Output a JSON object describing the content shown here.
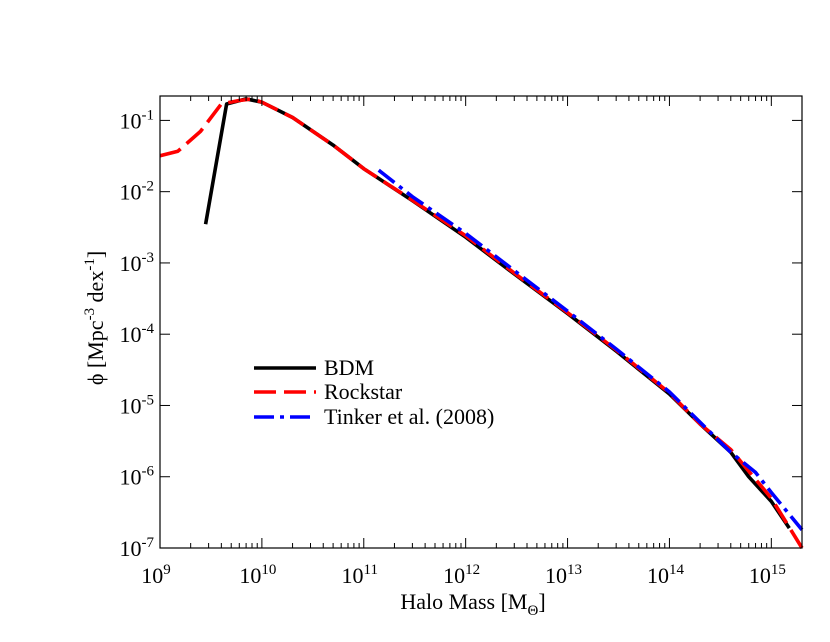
{
  "chart_data": {
    "type": "line",
    "title": "",
    "xscale": "log",
    "yscale": "log",
    "xlim": [
      1000000000.0,
      2000000000000000.0
    ],
    "ylim": [
      1e-07,
      0.22
    ],
    "grid": false,
    "legend_position": "center-left",
    "xlabel": {
      "main": "Halo Mass [M",
      "sub": "Θ",
      "tail": "]"
    },
    "ylabel": {
      "main": "ϕ [Mpc",
      "sup1": "-3",
      "mid": " dex",
      "sup2": "-1",
      "tail": "]"
    },
    "x_ticks": [
      {
        "base": "10",
        "exp": "9",
        "value": 1000000000.0
      },
      {
        "base": "10",
        "exp": "10",
        "value": 10000000000.0
      },
      {
        "base": "10",
        "exp": "11",
        "value": 100000000000.0
      },
      {
        "base": "10",
        "exp": "12",
        "value": 1000000000000.0
      },
      {
        "base": "10",
        "exp": "13",
        "value": 10000000000000.0
      },
      {
        "base": "10",
        "exp": "14",
        "value": 100000000000000.0
      },
      {
        "base": "10",
        "exp": "15",
        "value": 1000000000000000.0
      }
    ],
    "y_ticks": [
      {
        "base": "10",
        "exp": "-1",
        "value": 0.1
      },
      {
        "base": "10",
        "exp": "-2",
        "value": 0.01
      },
      {
        "base": "10",
        "exp": "-3",
        "value": 0.001
      },
      {
        "base": "10",
        "exp": "-4",
        "value": 0.0001
      },
      {
        "base": "10",
        "exp": "-5",
        "value": 1e-05
      },
      {
        "base": "10",
        "exp": "-6",
        "value": 1e-06
      },
      {
        "base": "10",
        "exp": "-7",
        "value": 1e-07
      }
    ],
    "series": [
      {
        "name": "BDM",
        "color": "#000000",
        "dash": "solid",
        "x": [
          2800000000.0,
          4500000000.0,
          7000000000.0,
          10000000000.0,
          20000000000.0,
          50000000000.0,
          100000000000.0,
          300000000000.0,
          1000000000000.0,
          3000000000000.0,
          10000000000000.0,
          30000000000000.0,
          100000000000000.0,
          200000000000000.0,
          400000000000000.0,
          600000000000000.0,
          1000000000000000.0,
          1500000000000000.0
        ],
        "y": [
          0.0035,
          0.17,
          0.2,
          0.18,
          0.11,
          0.045,
          0.021,
          0.0075,
          0.0023,
          0.0007,
          0.000195,
          5.8e-05,
          1.45e-05,
          5.5e-06,
          2.2e-06,
          1e-06,
          4.5e-07,
          1.9e-07
        ]
      },
      {
        "name": "Rockstar",
        "color": "#ff0000",
        "dash": "long-dash",
        "x": [
          1000000000.0,
          1500000000.0,
          2500000000.0,
          4000000000.0,
          6000000000.0,
          8000000000.0,
          10000000000.0,
          20000000000.0,
          50000000000.0,
          100000000000.0,
          300000000000.0,
          1000000000000.0,
          3000000000000.0,
          10000000000000.0,
          30000000000000.0,
          100000000000000.0,
          200000000000000.0,
          400000000000000.0,
          600000000000000.0,
          1000000000000000.0,
          2000000000000000.0
        ],
        "y": [
          0.032,
          0.037,
          0.07,
          0.17,
          0.19,
          0.2,
          0.18,
          0.11,
          0.045,
          0.021,
          0.0076,
          0.0024,
          0.00072,
          0.0002,
          6e-05,
          1.5e-05,
          5.5e-06,
          2.4e-06,
          1.2e-06,
          5e-07,
          1e-07
        ]
      },
      {
        "name": "Tinker et al. (2008)",
        "color": "#0000ff",
        "dash": "dash-dot",
        "x": [
          140000000000.0,
          300000000000.0,
          1000000000000.0,
          3000000000000.0,
          10000000000000.0,
          30000000000000.0,
          100000000000000.0,
          200000000000000.0,
          400000000000000.0,
          700000000000000.0,
          1000000000000000.0,
          2000000000000000.0
        ],
        "y": [
          0.02,
          0.0085,
          0.0026,
          0.00078,
          0.00021,
          6.2e-05,
          1.55e-05,
          5.8e-06,
          2.2e-06,
          1.15e-06,
          6e-07,
          1.8e-07
        ]
      }
    ]
  }
}
